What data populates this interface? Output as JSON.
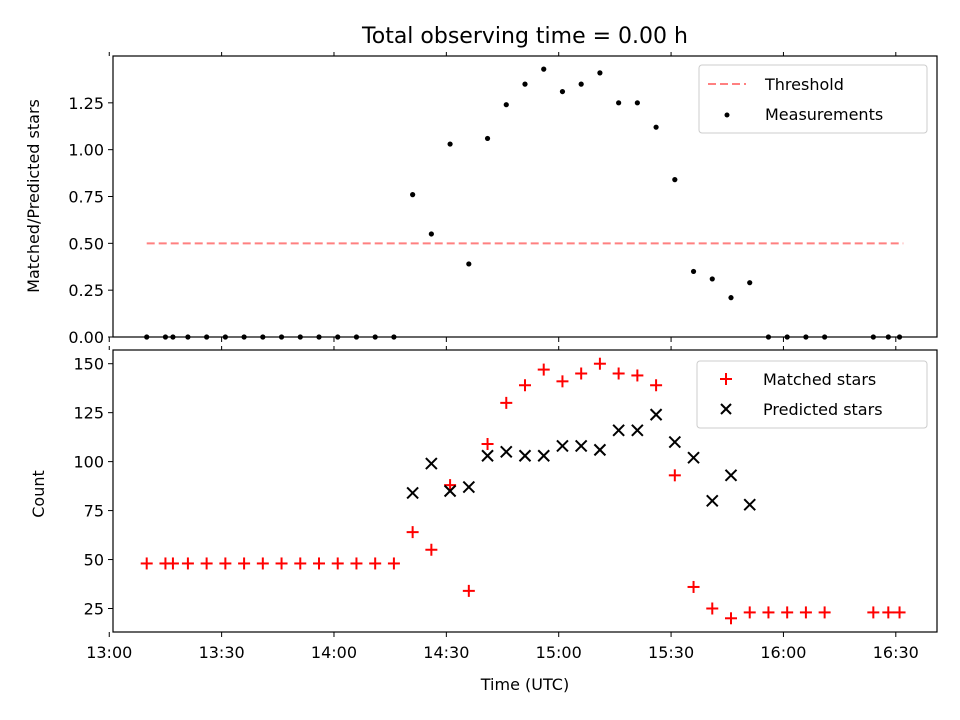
{
  "chart_data": [
    {
      "type": "scatter",
      "title": "Total observing time = 0.00 h",
      "ylabel": "Matched/Predicted stars",
      "xlabel": "",
      "xlim": [
        "13:01",
        "16:41"
      ],
      "ylim": [
        0,
        1.5
      ],
      "yticks": [
        "0.00",
        "0.25",
        "0.50",
        "0.75",
        "1.00",
        "1.25"
      ],
      "ytick_values": [
        0,
        0.25,
        0.5,
        0.75,
        1.0,
        1.25
      ],
      "legend_position": "upper right",
      "series": [
        {
          "name": "Threshold",
          "style": "dashed-line",
          "color": "#ff8080",
          "x": [
            "13:10",
            "16:32"
          ],
          "y": [
            0.5,
            0.5
          ]
        },
        {
          "name": "Measurements",
          "style": "dot",
          "color": "#000000",
          "x": [
            "13:10",
            "13:15",
            "13:17",
            "13:21",
            "13:26",
            "13:31",
            "13:36",
            "13:41",
            "13:46",
            "13:51",
            "13:56",
            "14:01",
            "14:06",
            "14:11",
            "14:16",
            "14:21",
            "14:26",
            "14:31",
            "14:36",
            "14:41",
            "14:46",
            "14:51",
            "14:56",
            "15:01",
            "15:06",
            "15:11",
            "15:16",
            "15:21",
            "15:26",
            "15:31",
            "15:36",
            "15:41",
            "15:46",
            "15:51",
            "15:56",
            "16:01",
            "16:06",
            "16:11",
            "16:24",
            "16:28",
            "16:31"
          ],
          "y": [
            0,
            0,
            0,
            0,
            0,
            0,
            0,
            0,
            0,
            0,
            0,
            0,
            0,
            0,
            0,
            0.76,
            0.55,
            1.03,
            0.39,
            1.06,
            1.24,
            1.35,
            1.43,
            1.31,
            1.35,
            1.41,
            1.25,
            1.25,
            1.12,
            0.84,
            0.35,
            0.31,
            0.21,
            0.29,
            0,
            0,
            0,
            0,
            0,
            0,
            0
          ]
        }
      ]
    },
    {
      "type": "scatter",
      "title": "",
      "ylabel": "Count",
      "xlabel": "Time (UTC)",
      "xlim": [
        "13:01",
        "16:41"
      ],
      "ylim": [
        13,
        157
      ],
      "yticks": [
        "25",
        "50",
        "75",
        "100",
        "125",
        "150"
      ],
      "ytick_values": [
        25,
        50,
        75,
        100,
        125,
        150
      ],
      "xticks": [
        "13:00",
        "13:30",
        "14:00",
        "14:30",
        "15:00",
        "15:30",
        "16:00",
        "16:30"
      ],
      "legend_position": "upper right",
      "series": [
        {
          "name": "Matched stars",
          "style": "plus",
          "color": "#ff0000",
          "x": [
            "13:10",
            "13:15",
            "13:17",
            "13:21",
            "13:26",
            "13:31",
            "13:36",
            "13:41",
            "13:46",
            "13:51",
            "13:56",
            "14:01",
            "14:06",
            "14:11",
            "14:16",
            "14:21",
            "14:26",
            "14:31",
            "14:36",
            "14:41",
            "14:46",
            "14:51",
            "14:56",
            "15:01",
            "15:06",
            "15:11",
            "15:16",
            "15:21",
            "15:26",
            "15:31",
            "15:36",
            "15:41",
            "15:46",
            "15:51",
            "15:56",
            "16:01",
            "16:06",
            "16:11",
            "16:24",
            "16:28",
            "16:31"
          ],
          "y": [
            48,
            48,
            48,
            48,
            48,
            48,
            48,
            48,
            48,
            48,
            48,
            48,
            48,
            48,
            48,
            64,
            55,
            88,
            34,
            109,
            130,
            139,
            147,
            141,
            145,
            150,
            145,
            144,
            139,
            93,
            36,
            25,
            20,
            23,
            23,
            23,
            23,
            23,
            23,
            23,
            23
          ]
        },
        {
          "name": "Predicted stars",
          "style": "x",
          "color": "#000000",
          "x": [
            "14:21",
            "14:26",
            "14:31",
            "14:36",
            "14:41",
            "14:46",
            "14:51",
            "14:56",
            "15:01",
            "15:06",
            "15:11",
            "15:16",
            "15:21",
            "15:26",
            "15:31",
            "15:36",
            "15:41",
            "15:46",
            "15:51"
          ],
          "y": [
            84,
            99,
            85,
            87,
            103,
            105,
            103,
            103,
            108,
            108,
            106,
            116,
            116,
            124,
            110,
            102,
            80,
            93,
            78
          ]
        }
      ]
    }
  ]
}
